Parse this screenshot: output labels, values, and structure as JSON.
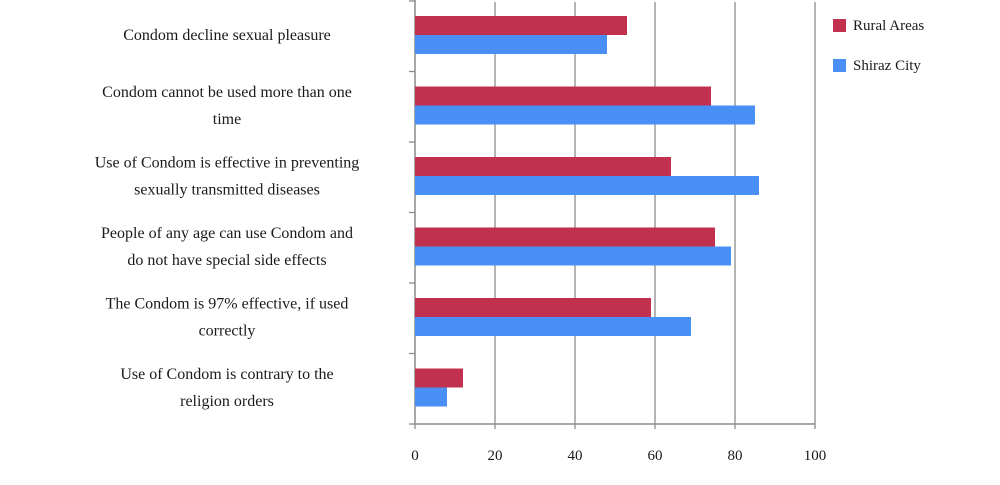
{
  "chart_data": {
    "type": "bar",
    "orientation": "horizontal",
    "categories": [
      "Condom decline sexual pleasure",
      "Condom cannot be used more than one time",
      "Use of Condom is effective in preventing sexually transmitted diseases",
      "People of any age can use Condom and do not have special side effects",
      "The Condom is 97% effective,  if used correctly",
      "Use of  Condom is contrary to the religion orders"
    ],
    "category_lines": [
      [
        "Condom decline sexual pleasure"
      ],
      [
        "Condom cannot be used more than one",
        "time"
      ],
      [
        "Use of Condom is effective in preventing",
        "sexually transmitted diseases"
      ],
      [
        "People of any age can use Condom and",
        "do not have special side effects"
      ],
      [
        "The Condom is 97% effective,  if used",
        "correctly"
      ],
      [
        "Use of  Condom is contrary to the",
        "religion orders"
      ]
    ],
    "series": [
      {
        "name": "Rural Areas",
        "color": "#c2304f",
        "values": [
          53,
          74,
          64,
          75,
          59,
          12
        ]
      },
      {
        "name": "Shiraz City",
        "color": "#4a8ff5",
        "values": [
          48,
          85,
          86,
          79,
          69,
          8
        ]
      }
    ],
    "xlim": [
      0,
      100
    ],
    "xticks": [
      "0",
      "20",
      "40",
      "60",
      "80",
      "100"
    ],
    "grid": true,
    "legend_position": "top-right"
  }
}
